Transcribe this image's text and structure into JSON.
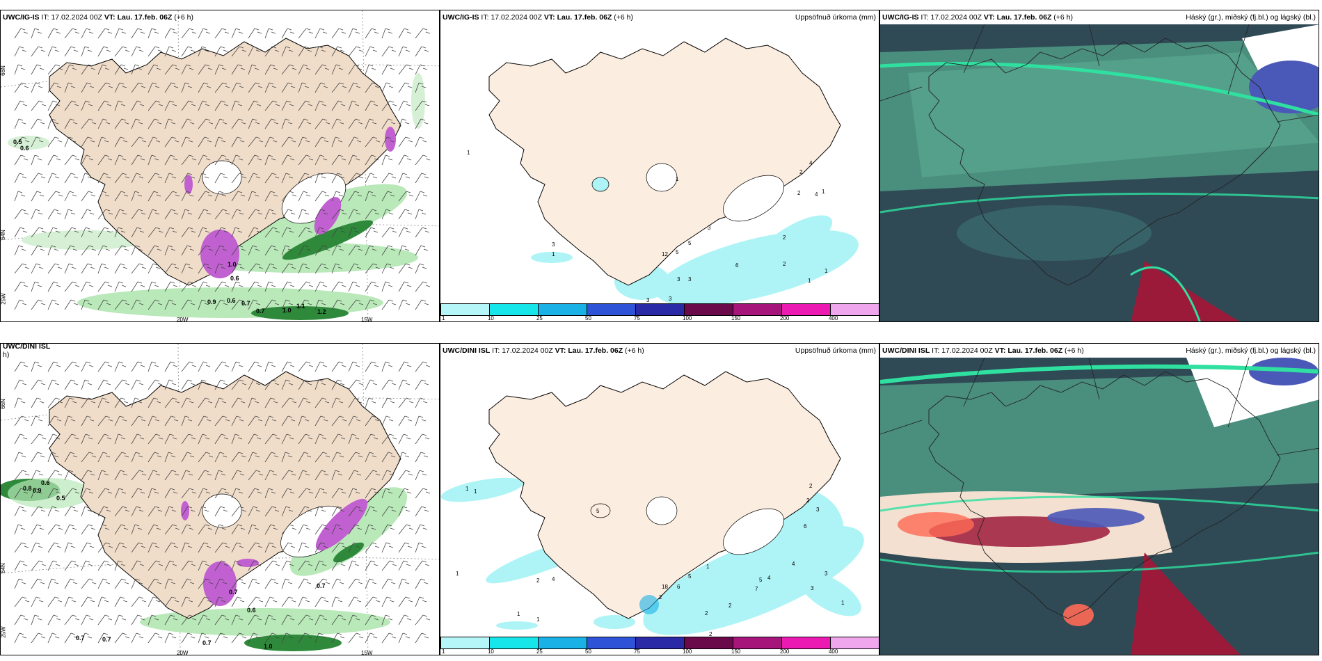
{
  "colors": {
    "land": "#f7e8dc",
    "land_tan": "#e8d6c6",
    "precip_light_green": "#b9e8b9",
    "precip_dark_green": "#1f6a2a",
    "snow_magenta": "#c160d0",
    "accum_cyan": "#aef4f6",
    "cloud_teal": "#3f8a7a",
    "cloud_dark": "#2f4a55",
    "cloud_blue": "#4a59b8",
    "cloud_red": "#9b1a3a"
  },
  "colorbar": {
    "colors": [
      "#b5f6f8",
      "#16e6ea",
      "#1ab2e6",
      "#2e53d6",
      "#2a2aa6",
      "#6a0a4a",
      "#a5157a",
      "#ea1ab2",
      "#f0a6ec"
    ],
    "ticks": [
      "1",
      "10",
      "25",
      "50",
      "75",
      "100",
      "150",
      "200",
      "400"
    ]
  },
  "panels": {
    "top_left": {
      "model": "UWC/IG-IS",
      "it_label": "IT:",
      "it_value": "17.02.2024 00Z",
      "vt_label": "VT:",
      "vt_value": "Lau. 17.feb. 06Z",
      "lead": "(+6 h)",
      "lon_labels": [
        "20W",
        "15W"
      ],
      "lat_labels": [
        "66N",
        "64N",
        "25W"
      ],
      "values": [
        "0.5",
        "0.6",
        "1.0",
        "0.6",
        "0.9",
        "0.6",
        "0.7",
        "0.7",
        "1.0",
        "1.1",
        "1.2"
      ]
    },
    "top_mid": {
      "model": "UWC/IG-IS",
      "it_label": "IT:",
      "it_value": "17.02.2024 00Z",
      "vt_label": "VT:",
      "vt_value": "Lau. 17.feb. 06Z",
      "lead": "(+6 h)",
      "right_title": "Uppsöfnuð úrkoma (mm)",
      "values": [
        "1",
        "4",
        "3",
        "2",
        "1",
        "1",
        "12",
        "5",
        "5",
        "3",
        "3",
        "3",
        "6",
        "2",
        "2",
        "1",
        "1",
        "3",
        "2",
        "4",
        "3",
        "1"
      ]
    },
    "top_right": {
      "model": "UWC/IG-IS",
      "it_label": "IT:",
      "it_value": "17.02.2024 00Z",
      "vt_label": "VT:",
      "vt_value": "Lau. 17.feb. 06Z",
      "lead": "(+6 h)",
      "right_title": "Háský (gr.), miðský (fj.bl.) og lágský (bl.)"
    },
    "bottom_left": {
      "model": "UWC/DINI ISL",
      "lead_cut": "h)",
      "lon_labels": [
        "20W",
        "15W"
      ],
      "lat_labels": [
        "66N",
        "64N",
        "25W"
      ],
      "values": [
        "0.6",
        "0.8",
        "0.9",
        "0.5",
        "0.7",
        "0.6",
        "0.7",
        "0.7",
        "0.7",
        "0.7",
        "1.0"
      ]
    },
    "bottom_mid": {
      "model": "UWC/DINI ISL",
      "it_label": "IT:",
      "it_value": "17.02.2024 00Z",
      "vt_label": "VT:",
      "vt_value": "Lau. 17.feb. 06Z",
      "lead": "(+6 h)",
      "right_title": "Uppsöfnuð úrkoma (mm)",
      "values": [
        "1",
        "1",
        "1",
        "2",
        "4",
        "1",
        "1",
        "2",
        "18",
        "6",
        "5",
        "1",
        "5",
        "2",
        "2",
        "2",
        "2",
        "7",
        "4",
        "4",
        "3",
        "3",
        "1",
        "2",
        "2",
        "3",
        "5",
        "6"
      ]
    },
    "bottom_right": {
      "model": "UWC/DINI ISL",
      "it_label": "IT:",
      "it_value": "17.02.2024 00Z",
      "vt_label": "VT:",
      "vt_value": "Lau. 17.feb. 06Z",
      "lead": "(+6 h)",
      "right_title": "Háský (gr.), miðský (fj.bl.) og lágský (bl.)"
    }
  }
}
